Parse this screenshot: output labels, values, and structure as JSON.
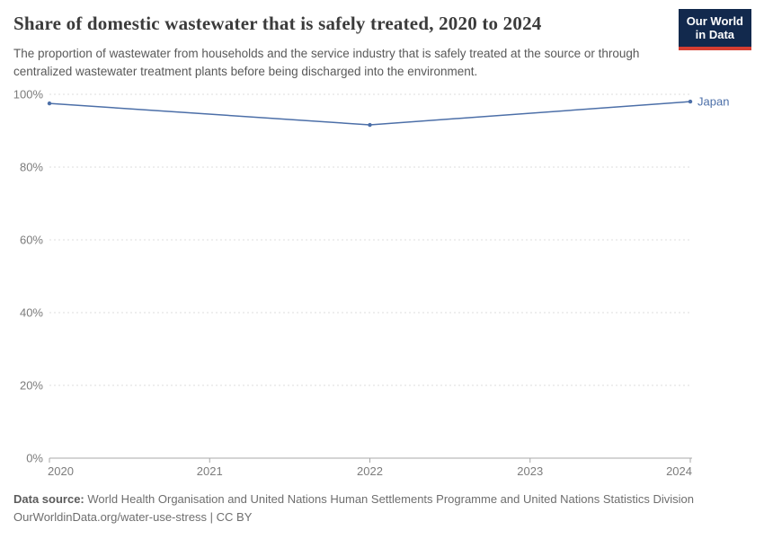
{
  "header": {
    "title": "Share of domestic wastewater that is safely treated, 2020 to 2024",
    "subtitle": "The proportion of wastewater from households and the service industry that is safely treated at the source or through centralized wastewater treatment plants before being discharged into the environment.",
    "logo": {
      "line1": "Our World",
      "line2": "in Data"
    }
  },
  "chart_data": {
    "type": "line",
    "title": "Share of domestic wastewater that is safely treated, 2020 to 2024",
    "x": [
      2020,
      2022,
      2024
    ],
    "series": [
      {
        "name": "Japan",
        "values": [
          97.5,
          91.6,
          98
        ],
        "color": "#4C6FA8"
      }
    ],
    "x_ticks": [
      2020,
      2021,
      2022,
      2023,
      2024
    ],
    "y_ticks": [
      0,
      20,
      40,
      60,
      80,
      100
    ],
    "y_tick_suffix": "%",
    "xlim": [
      2020,
      2024
    ],
    "ylim": [
      0,
      100
    ],
    "grid": "horizontal-dashed",
    "legend_position": "end-of-line-label",
    "colors": {
      "grid": "#dcdcdc",
      "axis": "#a8a8a8",
      "tick_text": "#7c7c7c"
    }
  },
  "footer": {
    "source_label": "Data source:",
    "source_text": " World Health Organisation and United Nations Human Settlements Programme and United Nations Statistics Division",
    "note": "OurWorldinData.org/water-use-stress | CC BY"
  }
}
